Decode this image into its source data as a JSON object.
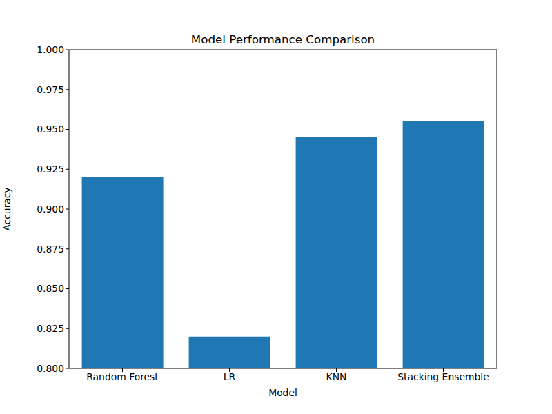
{
  "chart_data": {
    "type": "bar",
    "title": "Model Performance Comparison",
    "x_label": "Model",
    "y_label": "Accuracy",
    "categories": [
      "Random Forest",
      "LR",
      "KNN",
      "Stacking Ensemble"
    ],
    "values": [
      0.92,
      0.82,
      0.945,
      0.955
    ],
    "color": "#1f77b4",
    "ylim": [
      0.8,
      1.0
    ],
    "yticks": [
      {
        "value": 0.8,
        "label": "0.800"
      },
      {
        "value": 0.825,
        "label": "0.825"
      },
      {
        "value": 0.85,
        "label": "0.850"
      },
      {
        "value": 0.875,
        "label": "0.875"
      },
      {
        "value": 0.9,
        "label": "0.900"
      },
      {
        "value": 0.925,
        "label": "0.925"
      },
      {
        "value": 0.95,
        "label": "0.950"
      },
      {
        "value": 0.975,
        "label": "0.975"
      },
      {
        "value": 1.0,
        "label": "1.000"
      }
    ],
    "grid": false
  }
}
